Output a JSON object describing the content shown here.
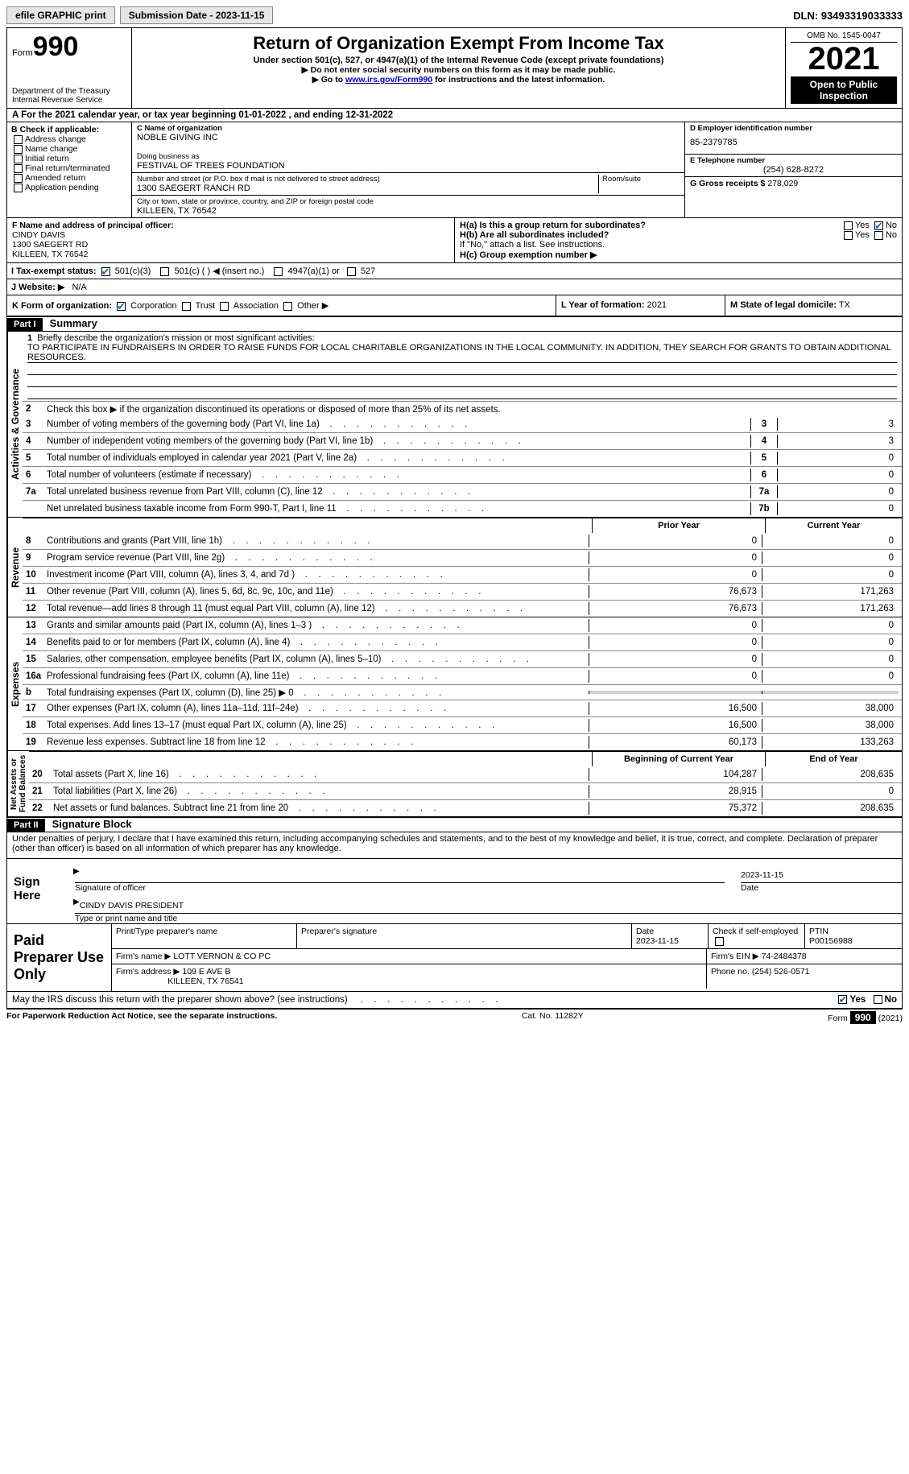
{
  "top": {
    "efile": "efile GRAPHIC print",
    "submission_label": "Submission Date - 2023-11-15",
    "dln_label": "DLN: 93493319033333"
  },
  "header": {
    "form_word": "Form",
    "form_num": "990",
    "dept": "Department of the Treasury",
    "irs": "Internal Revenue Service",
    "title": "Return of Organization Exempt From Income Tax",
    "subtitle": "Under section 501(c), 527, or 4947(a)(1) of the Internal Revenue Code (except private foundations)",
    "note1": "▶ Do not enter social security numbers on this form as it may be made public.",
    "note2_pre": "▶ Go to ",
    "note2_link": "www.irs.gov/Form990",
    "note2_post": " for instructions and the latest information.",
    "omb": "OMB No. 1545-0047",
    "year": "2021",
    "open_public": "Open to Public Inspection"
  },
  "row_a": "A For the 2021 calendar year, or tax year beginning 01-01-2022   , and ending 12-31-2022",
  "box_b": {
    "hdr": "B Check if applicable:",
    "items": [
      "Address change",
      "Name change",
      "Initial return",
      "Final return/terminated",
      "Amended return",
      "Application pending"
    ]
  },
  "box_c": {
    "lbl_name": "C Name of organization",
    "name": "NOBLE GIVING INC",
    "dba_lbl": "Doing business as",
    "dba": "FESTIVAL OF TREES FOUNDATION",
    "addr_lbl": "Number and street (or P.O. box if mail is not delivered to street address)",
    "room_lbl": "Room/suite",
    "addr": "1300 SAEGERT RANCH RD",
    "city_lbl": "City or town, state or province, country, and ZIP or foreign postal code",
    "city": "KILLEEN, TX  76542"
  },
  "box_d": {
    "lbl": "D Employer identification number",
    "val": "85-2379785"
  },
  "box_e": {
    "lbl": "E Telephone number",
    "val": "(254) 628-8272"
  },
  "box_g": {
    "lbl": "G Gross receipts $",
    "val": "278,029"
  },
  "box_f": {
    "lbl": "F  Name and address of principal officer:",
    "name": "CINDY DAVIS",
    "addr1": "1300 SAEGERT RD",
    "addr2": "KILLEEN, TX  76542"
  },
  "box_h": {
    "a": "H(a)  Is this a group return for subordinates?",
    "b": "H(b)  Are all subordinates included?",
    "note": "If \"No,\" attach a list. See instructions.",
    "c": "H(c)  Group exemption number ▶",
    "yes": "Yes",
    "no": "No"
  },
  "row_i": {
    "lbl": "I   Tax-exempt status:",
    "c3": "501(c)(3)",
    "c": "501(c) (  ) ◀ (insert no.)",
    "a1": "4947(a)(1) or",
    "s527": "527"
  },
  "row_j": {
    "lbl": "J   Website: ▶",
    "val": "N/A"
  },
  "row_k": {
    "lbl": "K Form of organization:",
    "corp": "Corporation",
    "trust": "Trust",
    "assoc": "Association",
    "other": "Other ▶"
  },
  "row_l": {
    "lbl": "L Year of formation:",
    "val": "2021"
  },
  "row_m": {
    "lbl": "M State of legal domicile:",
    "val": "TX"
  },
  "part1": {
    "hdr": "Part I",
    "title": "Summary"
  },
  "summary": {
    "line1_lbl": "Briefly describe the organization's mission or most significant activities:",
    "mission": "TO PARTICIPATE IN FUNDRAISERS IN ORDER TO RAISE FUNDS FOR LOCAL CHARITABLE ORGANIZATIONS IN THE LOCAL COMMUNITY. IN ADDITION, THEY SEARCH FOR GRANTS TO OBTAIN ADDITIONAL RESOURCES.",
    "line2": "Check this box ▶      if the organization discontinued its operations or disposed of more than 25% of its net assets.",
    "lines": [
      {
        "n": "3",
        "t": "Number of voting members of the governing body (Part VI, line 1a)",
        "box": "3",
        "v": "3"
      },
      {
        "n": "4",
        "t": "Number of independent voting members of the governing body (Part VI, line 1b)",
        "box": "4",
        "v": "3"
      },
      {
        "n": "5",
        "t": "Total number of individuals employed in calendar year 2021 (Part V, line 2a)",
        "box": "5",
        "v": "0"
      },
      {
        "n": "6",
        "t": "Total number of volunteers (estimate if necessary)",
        "box": "6",
        "v": "0"
      },
      {
        "n": "7a",
        "t": "Total unrelated business revenue from Part VIII, column (C), line 12",
        "box": "7a",
        "v": "0"
      },
      {
        "n": "",
        "t": "Net unrelated business taxable income from Form 990-T, Part I, line 11",
        "box": "7b",
        "v": "0"
      }
    ],
    "prior_hdr": "Prior Year",
    "curr_hdr": "Current Year",
    "rev": [
      {
        "n": "8",
        "t": "Contributions and grants (Part VIII, line 1h)",
        "p": "0",
        "c": "0"
      },
      {
        "n": "9",
        "t": "Program service revenue (Part VIII, line 2g)",
        "p": "0",
        "c": "0"
      },
      {
        "n": "10",
        "t": "Investment income (Part VIII, column (A), lines 3, 4, and 7d )",
        "p": "0",
        "c": "0"
      },
      {
        "n": "11",
        "t": "Other revenue (Part VIII, column (A), lines 5, 6d, 8c, 9c, 10c, and 11e)",
        "p": "76,673",
        "c": "171,263"
      },
      {
        "n": "12",
        "t": "Total revenue—add lines 8 through 11 (must equal Part VIII, column (A), line 12)",
        "p": "76,673",
        "c": "171,263"
      }
    ],
    "exp": [
      {
        "n": "13",
        "t": "Grants and similar amounts paid (Part IX, column (A), lines 1–3 )",
        "p": "0",
        "c": "0"
      },
      {
        "n": "14",
        "t": "Benefits paid to or for members (Part IX, column (A), line 4)",
        "p": "0",
        "c": "0"
      },
      {
        "n": "15",
        "t": "Salaries, other compensation, employee benefits (Part IX, column (A), lines 5–10)",
        "p": "0",
        "c": "0"
      },
      {
        "n": "16a",
        "t": "Professional fundraising fees (Part IX, column (A), line 11e)",
        "p": "0",
        "c": "0"
      },
      {
        "n": "b",
        "t": "Total fundraising expenses (Part IX, column (D), line 25) ▶ 0",
        "p": "",
        "c": "",
        "shade": true
      },
      {
        "n": "17",
        "t": "Other expenses (Part IX, column (A), lines 11a–11d, 11f–24e)",
        "p": "16,500",
        "c": "38,000"
      },
      {
        "n": "18",
        "t": "Total expenses. Add lines 13–17 (must equal Part IX, column (A), line 25)",
        "p": "16,500",
        "c": "38,000"
      },
      {
        "n": "19",
        "t": "Revenue less expenses. Subtract line 18 from line 12",
        "p": "60,173",
        "c": "133,263"
      }
    ],
    "net_hdr_l": "Beginning of Current Year",
    "net_hdr_r": "End of Year",
    "net": [
      {
        "n": "20",
        "t": "Total assets (Part X, line 16)",
        "p": "104,287",
        "c": "208,635"
      },
      {
        "n": "21",
        "t": "Total liabilities (Part X, line 26)",
        "p": "28,915",
        "c": "0"
      },
      {
        "n": "22",
        "t": "Net assets or fund balances. Subtract line 21 from line 20",
        "p": "75,372",
        "c": "208,635"
      }
    ]
  },
  "part2": {
    "hdr": "Part II",
    "title": "Signature Block",
    "decl": "Under penalties of perjury, I declare that I have examined this return, including accompanying schedules and statements, and to the best of my knowledge and belief, it is true, correct, and complete. Declaration of preparer (other than officer) is based on all information of which preparer has any knowledge."
  },
  "sign": {
    "here": "Sign Here",
    "sig_officer": "Signature of officer",
    "date": "2023-11-15",
    "date_lbl": "Date",
    "name": "CINDY DAVIS  PRESIDENT",
    "name_lbl": "Type or print name and title"
  },
  "paid": {
    "hdr": "Paid Preparer Use Only",
    "print_lbl": "Print/Type preparer's name",
    "sig_lbl": "Preparer's signature",
    "date_lbl": "Date",
    "date": "2023-11-15",
    "check_lbl": "Check        if self-employed",
    "ptin_lbl": "PTIN",
    "ptin": "P00156988",
    "firm_lbl": "Firm's name   ▶",
    "firm": "LOTT VERNON & CO PC",
    "ein_lbl": "Firm's EIN ▶",
    "ein": "74-2484378",
    "addr_lbl": "Firm's address ▶",
    "addr": "109 E AVE B",
    "addr2": "KILLEEN, TX  76541",
    "phone_lbl": "Phone no.",
    "phone": "(254) 526-0571"
  },
  "footer": {
    "discuss": "May the IRS discuss this return with the preparer shown above? (see instructions)",
    "yes": "Yes",
    "no": "No",
    "pra": "For Paperwork Reduction Act Notice, see the separate instructions.",
    "cat": "Cat. No. 11282Y",
    "form": "Form 990 (2021)"
  },
  "colors": {
    "bg": "#ffffff",
    "border": "#000000",
    "link": "#0000cc",
    "btn_bg": "#e6e6e6",
    "check": "#2a6496",
    "shade": "#d0d0d0"
  }
}
